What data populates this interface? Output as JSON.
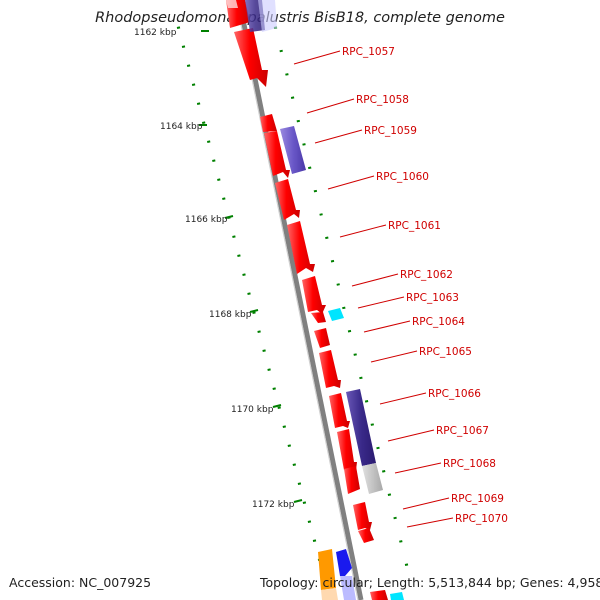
{
  "title": "Rhodopseudomonas palustris BisB18, complete genome",
  "accession_text": "Accession: NC_007925",
  "stats_text": "Topology: circular; Length: 5,513,844 bp; Genes: 4,958",
  "scale_ticks": [
    "1162 kbp",
    "1164 kbp",
    "1166 kbp",
    "1168 kbp",
    "1170 kbp",
    "1172 kbp"
  ],
  "gene_labels": [
    "RPC_1057",
    "RPC_1058",
    "RPC_1059",
    "RPC_1060",
    "RPC_1061",
    "RPC_1062",
    "RPC_1063",
    "RPC_1064",
    "RPC_1065",
    "RPC_1066",
    "RPC_1067",
    "RPC_1068",
    "RPC_1069",
    "RPC_1070"
  ],
  "colors": {
    "gene_cds": "#ff0000",
    "feature_blue": "#7a66cc",
    "feature_cyan": "#00e5ff",
    "feature_grey": "#c0c0c0",
    "feature_orange": "#ff9900",
    "feature_dark_blue": "#1a1aee",
    "backbone": "#808080",
    "tick_marks": "#008000",
    "label_lines": "#d00000"
  }
}
